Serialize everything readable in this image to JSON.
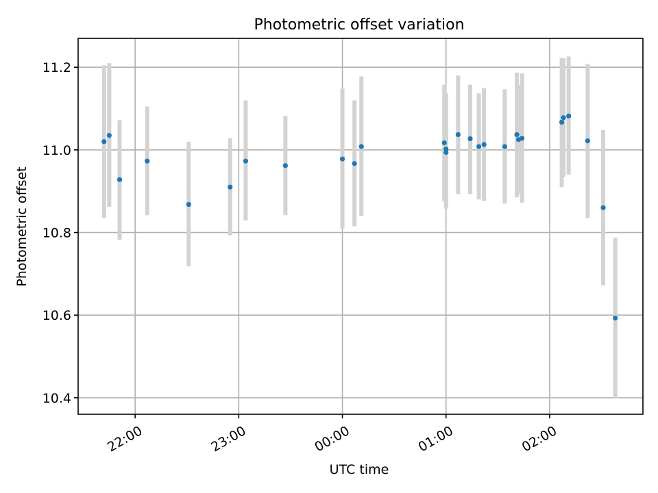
{
  "chart_data": {
    "type": "scatter",
    "title": "Photometric offset variation",
    "xlabel": "UTC time",
    "ylabel": "Photometric offset",
    "xlim": [
      "21:27",
      "02:54"
    ],
    "ylim": [
      10.36,
      11.27
    ],
    "grid": true,
    "y_ticks": [
      10.4,
      10.6,
      10.8,
      11.0,
      11.2
    ],
    "y_tick_labels": [
      "10.4",
      "10.6",
      "10.8",
      "11.0",
      "11.2"
    ],
    "x_ticks": [
      "22:00",
      "23:00",
      "00:00",
      "01:00",
      "02:00"
    ],
    "x_tick_labels": [
      "22:00",
      "23:00",
      "00:00",
      "01:00",
      "02:00"
    ],
    "series": [
      {
        "color": "#1f77b4",
        "error_color": "#d3d3d3",
        "points": [
          {
            "x": "21:42",
            "y": 11.02,
            "ylo": 10.835,
            "yhi": 11.205
          },
          {
            "x": "21:45",
            "y": 11.035,
            "ylo": 10.862,
            "yhi": 11.21
          },
          {
            "x": "21:51",
            "y": 10.928,
            "ylo": 10.782,
            "yhi": 11.072
          },
          {
            "x": "22:07",
            "y": 10.973,
            "ylo": 10.842,
            "yhi": 11.105
          },
          {
            "x": "22:31",
            "y": 10.868,
            "ylo": 10.718,
            "yhi": 11.02
          },
          {
            "x": "22:55",
            "y": 10.91,
            "ylo": 10.793,
            "yhi": 11.028
          },
          {
            "x": "23:04",
            "y": 10.973,
            "ylo": 10.829,
            "yhi": 11.12
          },
          {
            "x": "23:27",
            "y": 10.962,
            "ylo": 10.842,
            "yhi": 11.082
          },
          {
            "x": "00:00",
            "y": 10.978,
            "ylo": 10.81,
            "yhi": 11.148
          },
          {
            "x": "00:07",
            "y": 10.967,
            "ylo": 10.815,
            "yhi": 11.12
          },
          {
            "x": "00:11",
            "y": 11.008,
            "ylo": 10.84,
            "yhi": 11.178
          },
          {
            "x": "00:59",
            "y": 11.017,
            "ylo": 10.875,
            "yhi": 11.158
          },
          {
            "x": "01:00",
            "y": 11.002,
            "ylo": 10.868,
            "yhi": 11.138
          },
          {
            "x": "01:00",
            "y": 10.994,
            "ylo": 10.858,
            "yhi": 11.128
          },
          {
            "x": "01:07",
            "y": 11.037,
            "ylo": 10.893,
            "yhi": 11.18
          },
          {
            "x": "01:14",
            "y": 11.027,
            "ylo": 10.893,
            "yhi": 11.158
          },
          {
            "x": "01:19",
            "y": 11.008,
            "ylo": 10.88,
            "yhi": 11.137
          },
          {
            "x": "01:22",
            "y": 11.013,
            "ylo": 10.876,
            "yhi": 11.15
          },
          {
            "x": "01:34",
            "y": 11.008,
            "ylo": 10.87,
            "yhi": 11.147
          },
          {
            "x": "01:41",
            "y": 11.037,
            "ylo": 10.885,
            "yhi": 11.187
          },
          {
            "x": "01:42",
            "y": 11.025,
            "ylo": 10.894,
            "yhi": 11.157
          },
          {
            "x": "01:44",
            "y": 11.028,
            "ylo": 10.872,
            "yhi": 11.185
          },
          {
            "x": "02:07",
            "y": 11.067,
            "ylo": 10.91,
            "yhi": 11.222
          },
          {
            "x": "02:08",
            "y": 11.078,
            "ylo": 10.935,
            "yhi": 11.222
          },
          {
            "x": "02:11",
            "y": 11.082,
            "ylo": 10.94,
            "yhi": 11.226
          },
          {
            "x": "02:22",
            "y": 11.022,
            "ylo": 10.835,
            "yhi": 11.208
          },
          {
            "x": "02:31",
            "y": 10.86,
            "ylo": 10.672,
            "yhi": 11.048
          },
          {
            "x": "02:38",
            "y": 10.593,
            "ylo": 10.398,
            "yhi": 10.787
          }
        ]
      }
    ]
  }
}
